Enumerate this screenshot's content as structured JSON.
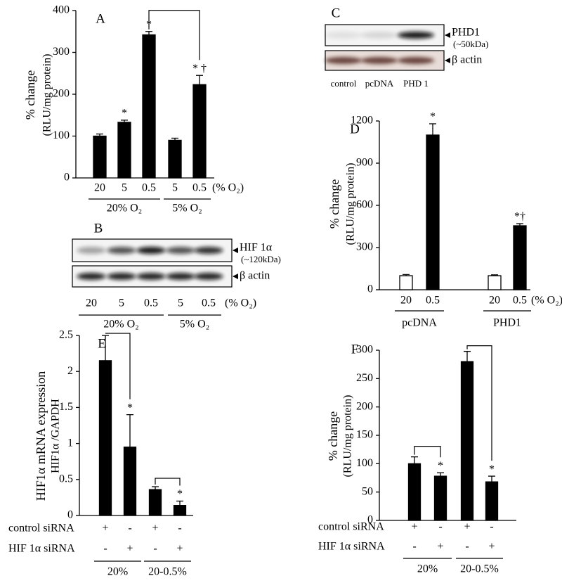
{
  "chart_data": [
    {
      "type": "bar",
      "panel": "A",
      "ylabel": [
        "% change",
        "(RLU/mg protein)"
      ],
      "categories": [
        "20",
        "5",
        "0.5",
        "5",
        "0.5"
      ],
      "x_unit": "(% O₂)",
      "groups": [
        "20% O₂",
        "5% O₂"
      ],
      "values": [
        100,
        133,
        342,
        90,
        223
      ],
      "errors": [
        5,
        5,
        8,
        5,
        22
      ],
      "colors": [
        "#000000",
        "#000000",
        "#000000",
        "#000000",
        "#000000"
      ],
      "markers": [
        null,
        "*",
        "*",
        null,
        "* †"
      ],
      "ylim": [
        0,
        400
      ],
      "yticks": [
        0,
        100,
        200,
        300,
        400
      ]
    },
    {
      "type": "bar",
      "panel": "D",
      "ylabel": [
        "% change",
        "(RLU/mg protein)"
      ],
      "categories": [
        "20",
        "0.5",
        "20",
        "0.5"
      ],
      "x_unit": "(% O₂)",
      "groups": [
        "pcDNA",
        "PHD1"
      ],
      "values": [
        100,
        1100,
        100,
        455
      ],
      "errors": [
        8,
        80,
        6,
        15
      ],
      "colors": [
        "#ffffff",
        "#000000",
        "#ffffff",
        "#000000"
      ],
      "markers": [
        null,
        "*",
        null,
        "*†"
      ],
      "ylim": [
        0,
        1200
      ],
      "yticks": [
        0,
        300,
        600,
        900,
        1200
      ]
    },
    {
      "type": "bar",
      "panel": "E",
      "ylabel": [
        "HIF1α mRNA expression",
        "HIF1α /GAPDH"
      ],
      "rows": [
        {
          "label": "control siRNA",
          "signs": [
            "+",
            "-",
            "+",
            "-"
          ]
        },
        {
          "label": "HIF 1α siRNA",
          "signs": [
            "-",
            "+",
            "-",
            "+"
          ]
        }
      ],
      "groups": [
        "20%",
        "20-0.5%"
      ],
      "values": [
        2.15,
        0.95,
        0.36,
        0.14
      ],
      "errors": [
        0.35,
        0.45,
        0.04,
        0.06
      ],
      "colors": [
        "#000000",
        "#000000",
        "#000000",
        "#000000"
      ],
      "markers": [
        null,
        "*",
        null,
        "*"
      ],
      "ylim": [
        0,
        2.5
      ],
      "yticks": [
        0,
        0.5,
        1,
        1.5,
        2,
        2.5
      ]
    },
    {
      "type": "bar",
      "panel": "F",
      "ylabel": [
        "% change",
        "(RLU/mg protein)"
      ],
      "rows": [
        {
          "label": "control siRNA",
          "signs": [
            "+",
            "-",
            "+",
            "-"
          ]
        },
        {
          "label": "HIF 1α siRNA",
          "signs": [
            "-",
            "+",
            "-",
            "+"
          ]
        }
      ],
      "groups": [
        "20%",
        "20-0.5%"
      ],
      "values": [
        100,
        78,
        280,
        68
      ],
      "errors": [
        12,
        6,
        18,
        10
      ],
      "colors": [
        "#000000",
        "#000000",
        "#000000",
        "#000000"
      ],
      "markers": [
        null,
        "*",
        null,
        "*"
      ],
      "ylim": [
        0,
        300
      ],
      "yticks": [
        0,
        50,
        100,
        150,
        200,
        250,
        300
      ]
    }
  ],
  "blots": [
    {
      "panel": "B",
      "target": "HIF 1α",
      "size": "(~120kDa)",
      "control": "β actin",
      "lanes": [
        "20",
        "5",
        "0.5",
        "5",
        "0.5"
      ],
      "unit": "(% O₂)",
      "groups": [
        "20% O₂",
        "5% O₂"
      ]
    },
    {
      "panel": "C",
      "target": "PHD1",
      "size": "(~50kDa)",
      "control": "β actin",
      "lanes": [
        "control",
        "pcDNA",
        "PHD 1"
      ]
    }
  ]
}
